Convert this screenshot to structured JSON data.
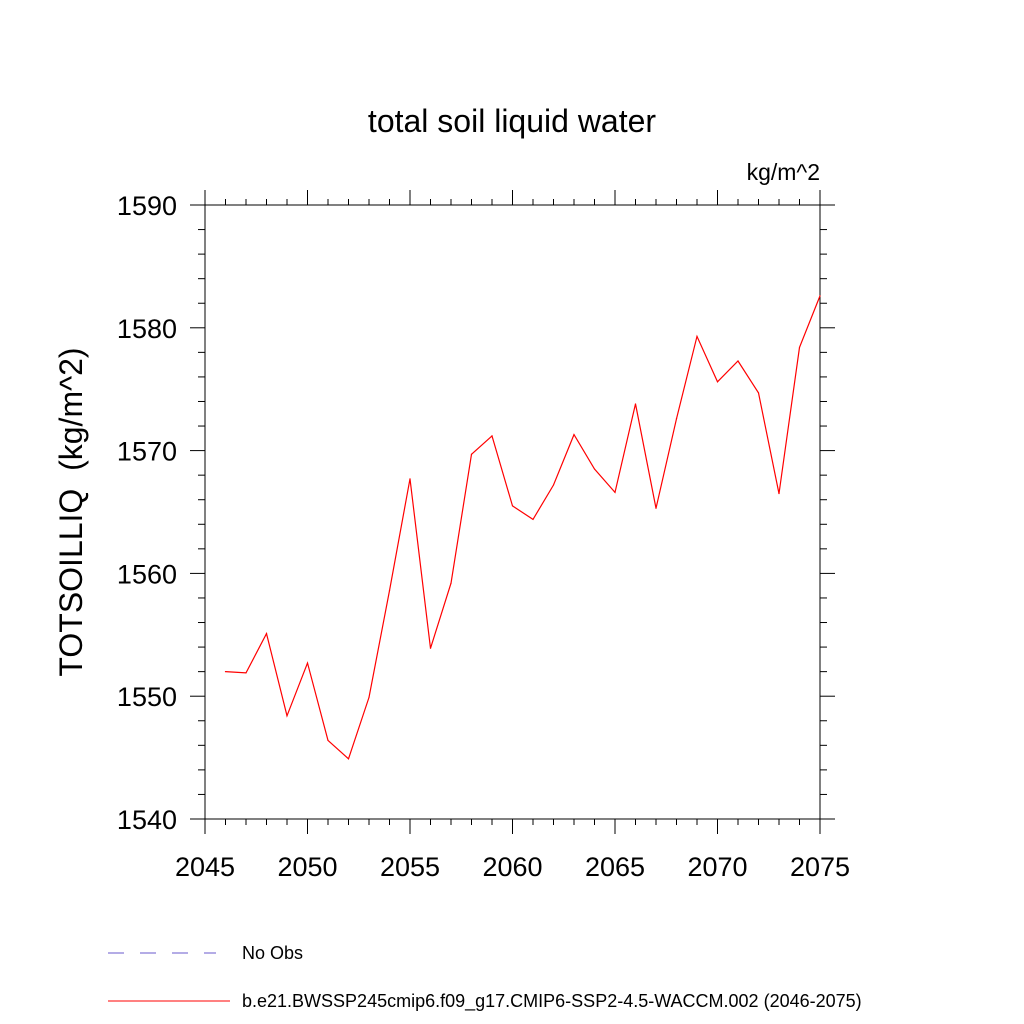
{
  "chart_data": {
    "type": "line",
    "title": "total soil liquid water",
    "units": "kg/m^2",
    "ylabel": "TOTSOILLIQ  (kg/m^2)",
    "xlabel": "",
    "xlim": [
      2045,
      2075
    ],
    "ylim": [
      1540,
      1590
    ],
    "x_ticks": [
      2045,
      2050,
      2055,
      2060,
      2065,
      2070,
      2075
    ],
    "y_ticks": [
      1540,
      1550,
      1560,
      1570,
      1580,
      1590
    ],
    "grid": false,
    "legend_position": "bottom-left",
    "series": [
      {
        "name": "b.e21.BWSSP245cmip6.f09_g17.CMIP6-SSP2-4.5-WACCM.002 (2046-2075)",
        "color": "#ff0000",
        "style": "solid",
        "x": [
          2046,
          2047,
          2048,
          2049,
          2050,
          2051,
          2052,
          2053,
          2054,
          2055,
          2056,
          2057,
          2058,
          2059,
          2060,
          2061,
          2062,
          2063,
          2064,
          2065,
          2066,
          2067,
          2068,
          2069,
          2070,
          2071,
          2072,
          2073,
          2074,
          2075
        ],
        "values": [
          1552.0,
          1551.9,
          1555.1,
          1548.4,
          1552.7,
          1546.4,
          1544.9,
          1549.9,
          1558.6,
          1567.7,
          1553.9,
          1559.2,
          1569.7,
          1571.2,
          1565.5,
          1564.4,
          1567.2,
          1571.3,
          1568.5,
          1566.6,
          1573.8,
          1565.3,
          1572.6,
          1579.3,
          1575.6,
          1577.3,
          1574.7,
          1566.5,
          1578.4,
          1582.6
        ]
      },
      {
        "name": "No Obs",
        "color": "#6a5acd",
        "style": "dashed",
        "x": [],
        "values": []
      }
    ]
  }
}
